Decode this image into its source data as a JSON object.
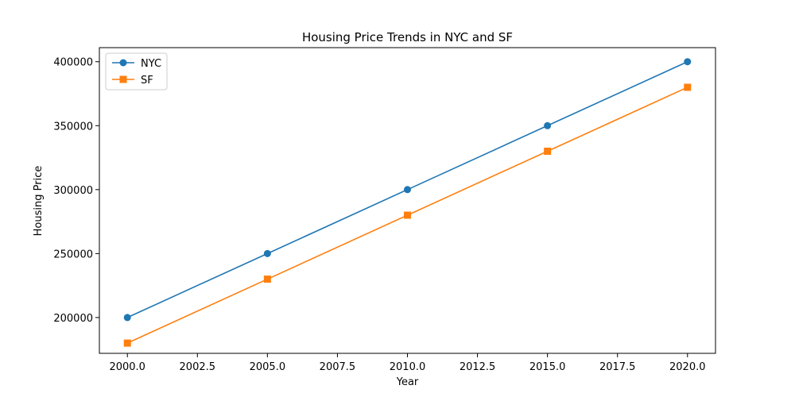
{
  "chart_data": {
    "type": "line",
    "title": "Housing Price Trends in NYC and SF",
    "xlabel": "Year",
    "ylabel": "Housing Price",
    "x": [
      2000,
      2005,
      2010,
      2015,
      2020
    ],
    "xlim": [
      1999,
      2021
    ],
    "ylim": [
      172000,
      411000
    ],
    "xticks": [
      2000.0,
      2002.5,
      2005.0,
      2007.5,
      2010.0,
      2012.5,
      2015.0,
      2017.5,
      2020.0
    ],
    "xtick_labels": [
      "2000.0",
      "2002.5",
      "2005.0",
      "2007.5",
      "2010.0",
      "2012.5",
      "2015.0",
      "2017.5",
      "2020.0"
    ],
    "yticks": [
      200000,
      250000,
      300000,
      350000,
      400000
    ],
    "ytick_labels": [
      "200000",
      "250000",
      "300000",
      "350000",
      "400000"
    ],
    "grid": false,
    "legend_position": "top-left",
    "series": [
      {
        "name": "NYC",
        "values": [
          200000,
          250000,
          300000,
          350000,
          400000
        ],
        "color": "#1f77b4",
        "marker": "circle"
      },
      {
        "name": "SF",
        "values": [
          180000,
          230000,
          280000,
          330000,
          380000
        ],
        "color": "#ff7f0e",
        "marker": "square"
      }
    ]
  }
}
